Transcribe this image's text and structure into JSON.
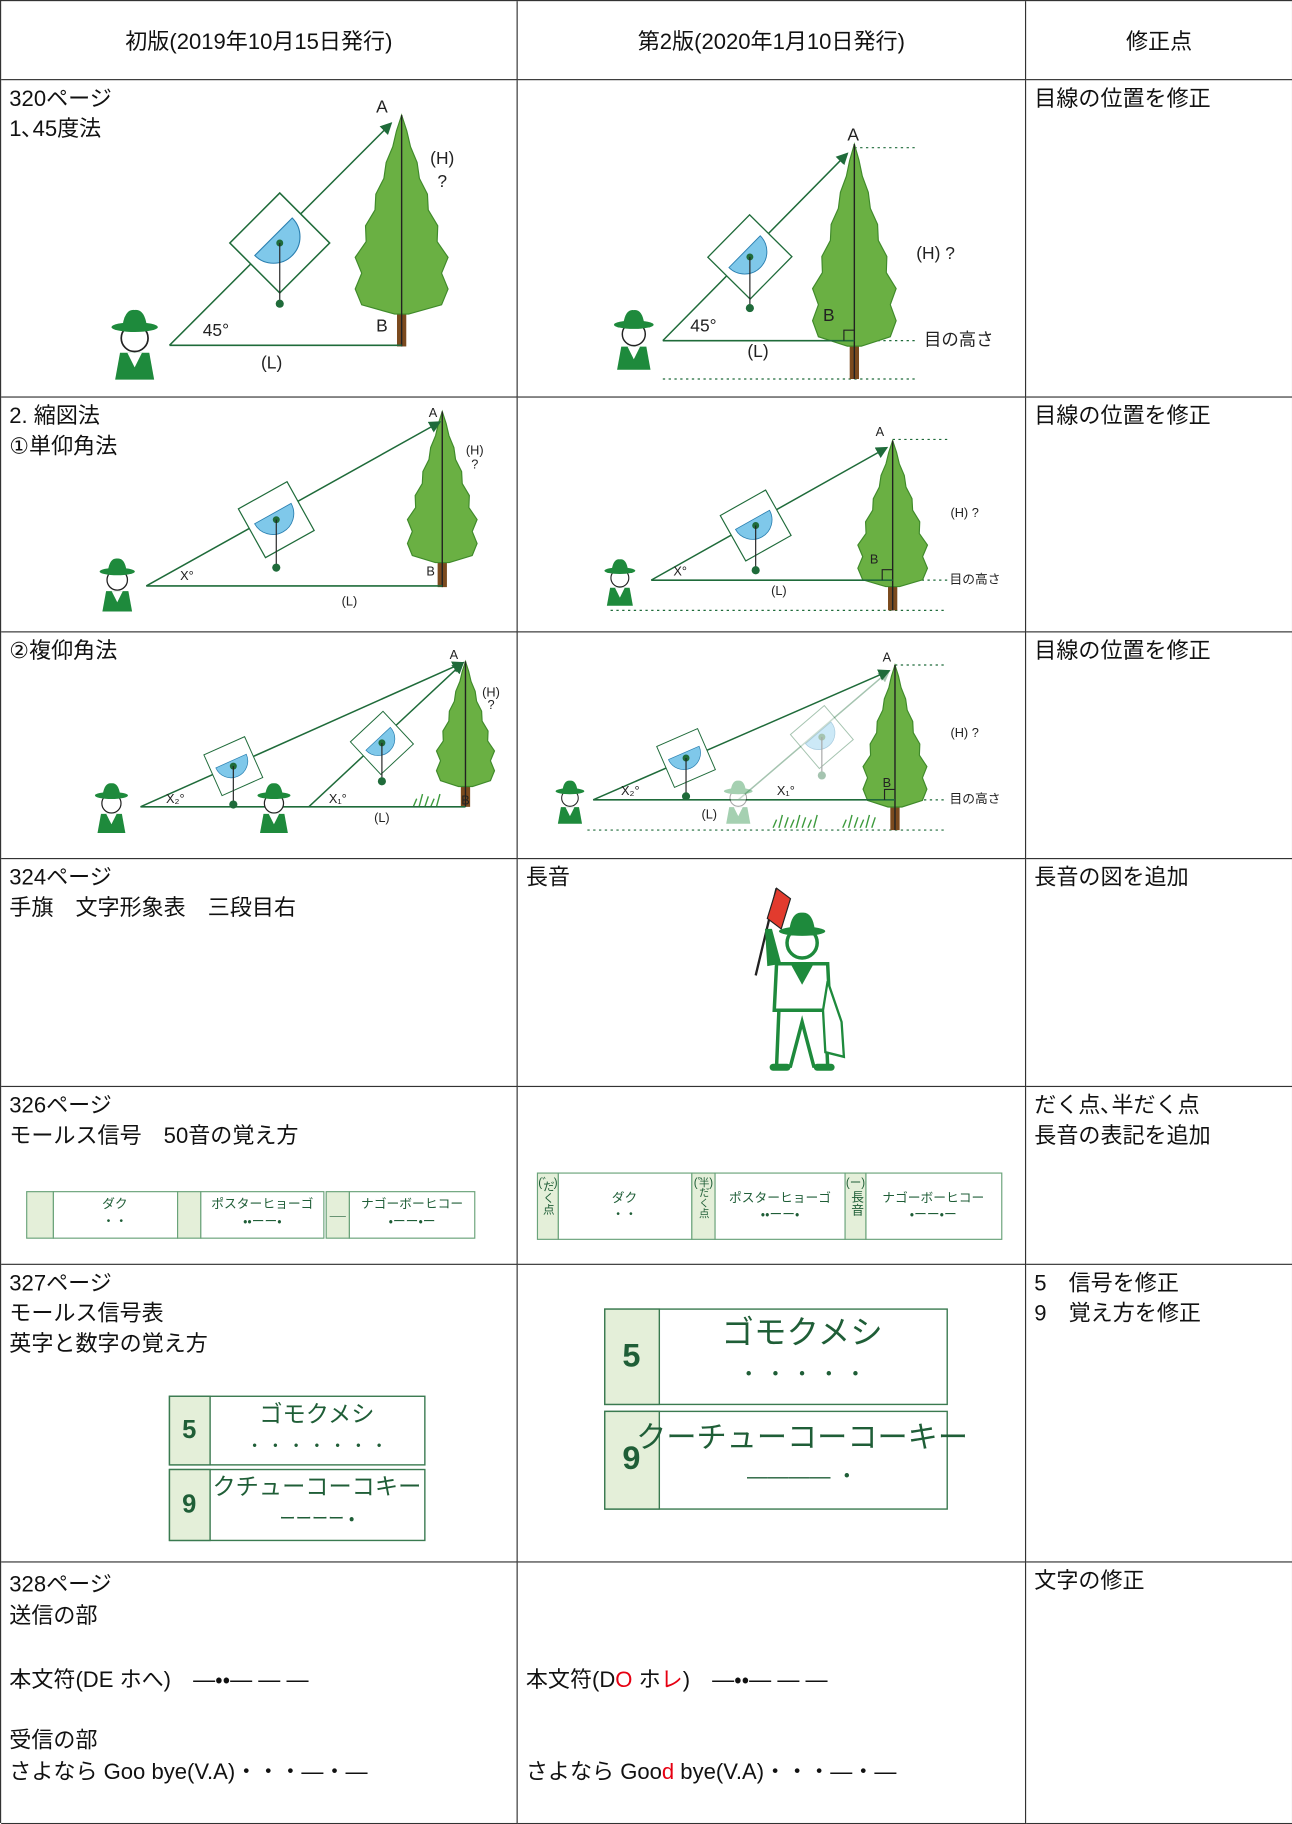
{
  "header": {
    "original": "初版(2019年10月15日発行)",
    "revised": "第2版(2020年1月10日発行)",
    "changes": "修正点"
  },
  "rows": [
    {
      "original": {
        "text": [
          "320ページ",
          "1､45度法"
        ],
        "figure": {
          "labels": [
            "A",
            "(H)",
            "?",
            "45°",
            "B",
            "(L)"
          ]
        }
      },
      "revised": {
        "figure": {
          "labels": [
            "A",
            "(H) ?",
            "45°",
            "B",
            "(L)",
            "目の高さ"
          ]
        }
      },
      "changes": [
        "目線の位置を修正"
      ]
    },
    {
      "original": {
        "text": [
          "2. 縮図法",
          "①単仰角法"
        ],
        "figure": {
          "labels": [
            "A",
            "(H)",
            "?",
            "X°",
            "B",
            "(L)"
          ]
        }
      },
      "revised": {
        "figure": {
          "labels": [
            "A",
            "(H) ?",
            "X°",
            "B",
            "(L)",
            "目の高さ"
          ]
        }
      },
      "changes": [
        "目線の位置を修正"
      ]
    },
    {
      "original": {
        "text": [
          "②複仰角法"
        ],
        "figure": {
          "labels": [
            "A",
            "(H)",
            "?",
            "X₂°",
            "X₁°",
            "B",
            "(L)"
          ]
        }
      },
      "revised": {
        "figure": {
          "labels": [
            "A",
            "(H) ?",
            "X₂°",
            "X₁°",
            "B",
            "(L)",
            "目の高さ"
          ]
        }
      },
      "changes": [
        "目線の位置を修正"
      ]
    },
    {
      "original": {
        "text": [
          "324ページ",
          "手旗　文字形象表　三段目右"
        ]
      },
      "revised": {
        "text": [
          "長音"
        ]
      },
      "changes": [
        "長音の図を追加"
      ]
    },
    {
      "original": {
        "text": [
          "326ページ",
          "モールス信号　50音の覚え方"
        ],
        "figure": {
          "labels": [
            "ダク",
            "・・",
            "ポスターヒョーゴ",
            "・・ーー・",
            "ナゴーボーヒコー",
            "・ーー・ー",
            "＿"
          ]
        }
      },
      "revised": {
        "figure": {
          "labels": [
            "ダク",
            "・・",
            "ポスターヒョーゴ",
            "・・ーー・",
            "ナゴーボーヒコー",
            "・ーー・ー",
            "(゛)",
            "だく点",
            "(゜)",
            "半だく点",
            "(ー)",
            "長音"
          ]
        }
      },
      "changes": [
        "だく点､半だく点",
        "長音の表記を追加"
      ]
    },
    {
      "original": {
        "text": [
          "327ページ",
          "モールス信号表",
          "英字と数字の覚え方"
        ],
        "figure": {
          "labels": [
            "5",
            "ゴモクメシ",
            "・ ・ ・ ・ ・ ・ ・",
            "9",
            "クチューコーコキー",
            "ーーーー ・"
          ]
        }
      },
      "revised": {
        "figure": {
          "labels": [
            "5",
            "ゴモクメシ",
            "・ ・ ・ ・ ・",
            "9",
            "クーチューコーコーキー",
            "————  ・"
          ]
        }
      },
      "changes": [
        "5　信号を修正",
        "9　覚え方を修正"
      ]
    },
    {
      "original": {
        "text": [
          "328ページ",
          "送信の部",
          "本文符(DE ホへ)　—・・— — —",
          "受信の部",
          "さよなら Goo bye(V.A)・・・—・—"
        ]
      },
      "revised": {
        "lines": [
          [
            {
              "text": "本文符(D"
            },
            {
              "text": "O",
              "color": "#e60012"
            },
            {
              "text": " ホ"
            },
            {
              "text": "レ",
              "color": "#e60012"
            },
            {
              "text": ")　—・・— — —"
            }
          ],
          [
            {
              "text": "さよなら Goo"
            },
            {
              "text": "d",
              "color": "#e60012"
            },
            {
              "text": " bye(V.A)・・・—・—"
            }
          ]
        ]
      },
      "changes": [
        "文字の修正"
      ]
    }
  ]
}
